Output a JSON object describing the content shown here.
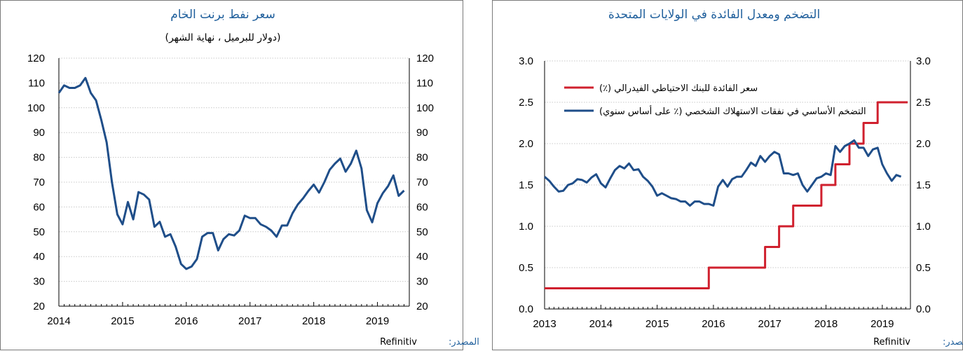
{
  "chart_data": [
    {
      "type": "line",
      "title": "سعر نفط برنت الخام",
      "subtitle": "(دولار للبرميل ، نهاية الشهر)",
      "source_label": "المصدر:",
      "source_value": "Refinitiv",
      "x_ticks": [
        "2014",
        "2015",
        "2016",
        "2017",
        "2018",
        "2019"
      ],
      "y_ticks": [
        20,
        30,
        40,
        50,
        60,
        70,
        80,
        90,
        100,
        110,
        120
      ],
      "ylim": [
        20,
        120
      ],
      "xlim": [
        2014.0,
        2019.5
      ],
      "grid": true,
      "series": [
        {
          "color": "#1f4e89",
          "x": [
            2014.0,
            2014.083,
            2014.167,
            2014.25,
            2014.333,
            2014.417,
            2014.5,
            2014.583,
            2014.667,
            2014.75,
            2014.833,
            2014.917,
            2015.0,
            2015.083,
            2015.167,
            2015.25,
            2015.333,
            2015.417,
            2015.5,
            2015.583,
            2015.667,
            2015.75,
            2015.833,
            2015.917,
            2016.0,
            2016.083,
            2016.167,
            2016.25,
            2016.333,
            2016.417,
            2016.5,
            2016.583,
            2016.667,
            2016.75,
            2016.833,
            2016.917,
            2017.0,
            2017.083,
            2017.167,
            2017.25,
            2017.333,
            2017.417,
            2017.5,
            2017.583,
            2017.667,
            2017.75,
            2017.833,
            2017.917,
            2018.0,
            2018.083,
            2018.167,
            2018.25,
            2018.333,
            2018.417,
            2018.5,
            2018.583,
            2018.667,
            2018.75,
            2018.833,
            2018.917,
            2019.0,
            2019.083,
            2019.167,
            2019.25,
            2019.333,
            2019.417
          ],
          "y": [
            106,
            109,
            108,
            108,
            109,
            112,
            106,
            103,
            95,
            86,
            70,
            57,
            53,
            62,
            55,
            66,
            65,
            63,
            52,
            54,
            48,
            49,
            44,
            37,
            35,
            36,
            39,
            48,
            49.5,
            49.5,
            42.5,
            47,
            49,
            48.5,
            50.5,
            56.5,
            55.5,
            55.5,
            53,
            52,
            50.5,
            48,
            52.5,
            52.5,
            57.5,
            61,
            63.5,
            66.5,
            69,
            65.8,
            70,
            75,
            77.5,
            79.5,
            74.2,
            77.5,
            82.7,
            75.5,
            58.7,
            53.8,
            61.5,
            65.5,
            68.4,
            72.7,
            64.5,
            66.6
          ]
        }
      ]
    },
    {
      "type": "line",
      "title": "التضخم ومعدل الفائدة في الولايات المتحدة",
      "source_label": "المصدر:",
      "source_value": "Refinitiv",
      "x_ticks": [
        "2013",
        "2014",
        "2015",
        "2016",
        "2017",
        "2018",
        "2019"
      ],
      "y_ticks": [
        "0.0",
        "0.5",
        "1.0",
        "1.5",
        "2.0",
        "2.5",
        "3.0"
      ],
      "ylim": [
        0,
        3
      ],
      "xlim": [
        2013.0,
        2019.5
      ],
      "grid": true,
      "legend_position": "top-right",
      "series": [
        {
          "name": "سعر الفائدة للبنك الاحتياطي الفيدرالي (٪)",
          "color": "#d0202e",
          "x": [
            2013.0,
            2015.917,
            2015.917,
            2016.917,
            2016.917,
            2017.167,
            2017.167,
            2017.417,
            2017.417,
            2017.917,
            2017.917,
            2018.167,
            2018.167,
            2018.417,
            2018.417,
            2018.667,
            2018.667,
            2018.917,
            2018.917,
            2019.45
          ],
          "y": [
            0.25,
            0.25,
            0.5,
            0.5,
            0.75,
            0.75,
            1.0,
            1.0,
            1.25,
            1.25,
            1.5,
            1.5,
            1.75,
            1.75,
            2.0,
            2.0,
            2.25,
            2.25,
            2.5,
            2.5
          ]
        },
        {
          "name": "التضخم الأساسي في نفقات الاستهلاك الشخصي (٪ على أساس سنوي)",
          "color": "#1f4e89",
          "x": [
            2013.0,
            2013.083,
            2013.167,
            2013.25,
            2013.333,
            2013.417,
            2013.5,
            2013.583,
            2013.667,
            2013.75,
            2013.833,
            2013.917,
            2014.0,
            2014.083,
            2014.167,
            2014.25,
            2014.333,
            2014.417,
            2014.5,
            2014.583,
            2014.667,
            2014.75,
            2014.833,
            2014.917,
            2015.0,
            2015.083,
            2015.167,
            2015.25,
            2015.333,
            2015.417,
            2015.5,
            2015.583,
            2015.667,
            2015.75,
            2015.833,
            2015.917,
            2016.0,
            2016.083,
            2016.167,
            2016.25,
            2016.333,
            2016.417,
            2016.5,
            2016.583,
            2016.667,
            2016.75,
            2016.833,
            2016.917,
            2017.0,
            2017.083,
            2017.167,
            2017.25,
            2017.333,
            2017.417,
            2017.5,
            2017.583,
            2017.667,
            2017.75,
            2017.833,
            2017.917,
            2018.0,
            2018.083,
            2018.167,
            2018.25,
            2018.333,
            2018.417,
            2018.5,
            2018.583,
            2018.667,
            2018.75,
            2018.833,
            2018.917,
            2019.0,
            2019.083,
            2019.167,
            2019.25,
            2019.333
          ],
          "y": [
            1.6,
            1.55,
            1.48,
            1.42,
            1.43,
            1.5,
            1.52,
            1.57,
            1.56,
            1.53,
            1.59,
            1.63,
            1.52,
            1.47,
            1.58,
            1.68,
            1.73,
            1.7,
            1.76,
            1.68,
            1.69,
            1.6,
            1.55,
            1.48,
            1.37,
            1.4,
            1.37,
            1.34,
            1.33,
            1.3,
            1.3,
            1.25,
            1.3,
            1.3,
            1.27,
            1.27,
            1.25,
            1.48,
            1.56,
            1.48,
            1.57,
            1.6,
            1.6,
            1.68,
            1.77,
            1.73,
            1.85,
            1.78,
            1.85,
            1.9,
            1.87,
            1.64,
            1.64,
            1.62,
            1.64,
            1.5,
            1.42,
            1.5,
            1.58,
            1.6,
            1.64,
            1.62,
            1.97,
            1.9,
            1.97,
            2.0,
            2.04,
            1.95,
            1.95,
            1.85,
            1.93,
            1.95,
            1.75,
            1.64,
            1.55,
            1.62,
            1.6
          ]
        }
      ]
    }
  ]
}
